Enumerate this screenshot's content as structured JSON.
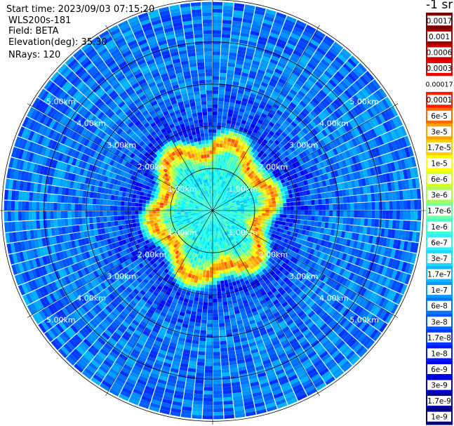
{
  "header": {
    "start_time": "Start time: 2023/09/03 07:15:20",
    "instrument": "WLS200s-181",
    "field": "Field: BETA",
    "elevation": "Elevation(deg): 35.30",
    "nrays": "NRays: 120"
  },
  "colorbar": {
    "unit_label": "-1 sr",
    "ticks": [
      "0.0017",
      "0.001",
      "0.0006",
      "0.0003",
      "0.00017",
      "0.0001",
      "6e-5",
      "3e-5",
      "1.7e-5",
      "1e-5",
      "6e-6",
      "3e-6",
      "1.7e-6",
      "1e-6",
      "6e-7",
      "3e-7",
      "1.7e-7",
      "1e-7",
      "6e-8",
      "3e-8",
      "1.7e-8",
      "1e-8",
      "6e-9",
      "3e-9",
      "1.7e-9",
      "1e-9"
    ],
    "colors": [
      "#7a0000",
      "#a00000",
      "#c80000",
      "#f00000",
      "#ffffff",
      "#ff1a00",
      "#ff6a00",
      "#ffa000",
      "#ffd000",
      "#ffff00",
      "#d8ff20",
      "#a8ff50",
      "#78ffa0",
      "#40ffd0",
      "#30f0ff",
      "#20d8ff",
      "#10b8ff",
      "#0898ff",
      "#0078ff",
      "#0058ff",
      "#0038ff",
      "#0018ff",
      "#0000f0",
      "#0000c8",
      "#0000a0",
      "#000080"
    ]
  },
  "chart_data": {
    "type": "heatmap",
    "subtype": "ppi-polar",
    "title": "",
    "field": "BETA",
    "elevation_deg": 35.3,
    "n_rays": 120,
    "colorscale": "log",
    "value_range": [
      1e-09,
      0.0017
    ],
    "range_rings_km": [
      1,
      2,
      3,
      4,
      5
    ],
    "range_ring_labels": [
      "1.00km",
      "2.00km",
      "3.00km",
      "4.00km",
      "5.00km"
    ],
    "max_range_km": 7,
    "profile_km_vs_beta": [
      {
        "range_km": 0.2,
        "beta": 3e-07
      },
      {
        "range_km": 1.0,
        "beta": 2e-07
      },
      {
        "range_km": 1.5,
        "beta": 6e-07
      },
      {
        "range_km": 1.9,
        "beta": 6e-05
      },
      {
        "range_km": 2.1,
        "beta": 1e-05
      },
      {
        "range_km": 2.5,
        "beta": 1e-08
      },
      {
        "range_km": 4.0,
        "beta": 3e-08
      },
      {
        "range_km": 6.5,
        "beta": 3e-08
      }
    ]
  }
}
